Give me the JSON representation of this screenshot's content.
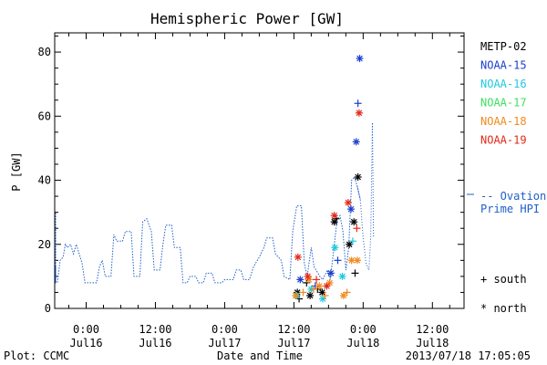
{
  "chart_data": {
    "type": "scatter",
    "title": "Hemispheric Power [GW]",
    "ylabel": "P [GW]",
    "xlabel": "Date and Time",
    "ylim": [
      0,
      86
    ],
    "yticks": [
      0,
      20,
      40,
      60,
      80
    ],
    "x_axis_unit": "hours from 2013-07-15 12:00 UT",
    "xlim": [
      0,
      61.8
    ],
    "xticks": [
      {
        "x": 12,
        "time": "0:00",
        "date": "Jul16"
      },
      {
        "x": 24,
        "time": "12:00",
        "date": "Jul16"
      },
      {
        "x": 36,
        "time": "0:00",
        "date": "Jul17"
      },
      {
        "x": 48,
        "time": "12:00",
        "date": "Jul17"
      },
      {
        "x": 60,
        "time": "0:00",
        "date": "Jul18"
      },
      {
        "x": 72,
        "time": "12:00",
        "date": "Jul18"
      }
    ],
    "grid": false,
    "footer_left": "Plot: CCMC",
    "footer_right": "2013/07/18 17:05:05",
    "legend": {
      "placement": "right",
      "entries": [
        {
          "name": "METP-02",
          "color": "#000000"
        },
        {
          "name": "NOAA-15",
          "color": "#1a3fcc"
        },
        {
          "name": "NOAA-16",
          "color": "#20c8e0"
        },
        {
          "name": "NOAA-17",
          "color": "#3ee060"
        },
        {
          "name": "NOAA-18",
          "color": "#f08a20"
        },
        {
          "name": "NOAA-19",
          "color": "#e02a1a"
        }
      ],
      "ovation_label": "-- Ovation",
      "ovation_label2": "Prime HPI",
      "ovation_color": "#1f5fc8",
      "south_label": "+ south",
      "north_label": "* north"
    },
    "ovation_series": {
      "name": "Ovation Prime HPI",
      "points": [
        [
          -0.8,
          22
        ],
        [
          -0.5,
          10
        ],
        [
          0.4,
          9
        ],
        [
          0.9,
          18
        ],
        [
          1.4,
          26
        ],
        [
          1.8,
          30
        ],
        [
          2.2,
          30
        ],
        [
          2.6,
          15
        ],
        [
          3.2,
          8
        ],
        [
          4.2,
          8
        ],
        [
          4.7,
          13
        ],
        [
          5.3,
          13
        ],
        [
          5.8,
          8
        ],
        [
          7.0,
          8
        ],
        [
          7.5,
          15
        ],
        [
          8.0,
          16
        ],
        [
          8.4,
          20
        ],
        [
          8.8,
          19
        ],
        [
          9.3,
          20
        ],
        [
          9.8,
          17
        ],
        [
          10.3,
          20
        ],
        [
          10.8,
          17
        ],
        [
          11.3,
          14
        ],
        [
          11.8,
          8
        ],
        [
          13.2,
          8
        ],
        [
          13.8,
          8
        ],
        [
          14.3,
          13
        ],
        [
          14.8,
          15
        ],
        [
          15.3,
          10
        ],
        [
          16.3,
          10
        ],
        [
          16.8,
          23
        ],
        [
          17.3,
          21
        ],
        [
          18.3,
          21
        ],
        [
          18.8,
          24
        ],
        [
          19.8,
          24
        ],
        [
          20.3,
          10
        ],
        [
          21.3,
          10
        ],
        [
          21.8,
          27
        ],
        [
          22.5,
          28
        ],
        [
          23.3,
          24
        ],
        [
          23.8,
          12
        ],
        [
          24.8,
          12
        ],
        [
          25.3,
          20
        ],
        [
          25.8,
          26
        ],
        [
          26.8,
          26
        ],
        [
          27.3,
          19
        ],
        [
          28.3,
          19
        ],
        [
          28.8,
          8
        ],
        [
          29.5,
          8
        ],
        [
          30.0,
          10
        ],
        [
          31.0,
          10
        ],
        [
          31.5,
          8
        ],
        [
          32.3,
          8
        ],
        [
          32.8,
          11
        ],
        [
          33.8,
          11
        ],
        [
          34.3,
          8
        ],
        [
          35.5,
          8
        ],
        [
          36.0,
          9
        ],
        [
          37.5,
          9
        ],
        [
          38.0,
          12
        ],
        [
          38.8,
          12
        ],
        [
          39.3,
          9
        ],
        [
          40.3,
          9
        ],
        [
          41.0,
          13
        ],
        [
          42.0,
          16
        ],
        [
          42.8,
          19
        ],
        [
          43.3,
          22
        ],
        [
          44.3,
          22
        ],
        [
          44.8,
          17
        ],
        [
          45.8,
          15
        ],
        [
          46.3,
          10
        ],
        [
          47.3,
          9
        ],
        [
          47.8,
          24
        ],
        [
          48.5,
          32
        ],
        [
          49.3,
          32
        ],
        [
          49.8,
          14
        ],
        [
          50.3,
          10
        ],
        [
          51.0,
          19
        ],
        [
          51.5,
          13
        ],
        [
          52.5,
          10
        ],
        [
          53.0,
          9
        ],
        [
          53.8,
          12
        ],
        [
          54.3,
          9
        ],
        [
          55.0,
          20
        ],
        [
          55.5,
          28
        ],
        [
          56.0,
          29
        ],
        [
          56.5,
          24
        ],
        [
          57.0,
          12
        ],
        [
          57.5,
          19
        ],
        [
          58.0,
          40
        ],
        [
          58.5,
          41
        ],
        [
          59.0,
          38
        ],
        [
          59.5,
          34
        ],
        [
          60.0,
          22
        ],
        [
          60.5,
          14
        ],
        [
          61.0,
          12
        ],
        [
          61.3,
          22
        ],
        [
          61.6,
          58
        ],
        [
          61.8,
          22
        ]
      ],
      "dotted_from_x": 59.5
    },
    "satellite_points": [
      {
        "sat": "METP-02",
        "hemi": "north",
        "x": 48.6,
        "y": 5
      },
      {
        "sat": "METP-02",
        "hemi": "south",
        "x": 48.9,
        "y": 3
      },
      {
        "sat": "METP-02",
        "hemi": "south",
        "x": 50.2,
        "y": 8
      },
      {
        "sat": "METP-02",
        "hemi": "north",
        "x": 50.8,
        "y": 4
      },
      {
        "sat": "METP-02",
        "hemi": "south",
        "x": 52.1,
        "y": 6
      },
      {
        "sat": "METP-02",
        "hemi": "north",
        "x": 52.9,
        "y": 5
      },
      {
        "sat": "METP-02",
        "hemi": "north",
        "x": 55.0,
        "y": 27
      },
      {
        "sat": "METP-02",
        "hemi": "south",
        "x": 55.3,
        "y": 28
      },
      {
        "sat": "METP-02",
        "hemi": "north",
        "x": 57.6,
        "y": 20
      },
      {
        "sat": "METP-02",
        "hemi": "north",
        "x": 58.4,
        "y": 27
      },
      {
        "sat": "METP-02",
        "hemi": "south",
        "x": 58.6,
        "y": 11
      },
      {
        "sat": "METP-02",
        "hemi": "north",
        "x": 59.1,
        "y": 41
      },
      {
        "sat": "NOAA-15",
        "hemi": "north",
        "x": 49.1,
        "y": 9
      },
      {
        "sat": "NOAA-15",
        "hemi": "south",
        "x": 51.7,
        "y": 7
      },
      {
        "sat": "NOAA-15",
        "hemi": "north",
        "x": 54.4,
        "y": 11
      },
      {
        "sat": "NOAA-15",
        "hemi": "south",
        "x": 55.6,
        "y": 15
      },
      {
        "sat": "NOAA-15",
        "hemi": "north",
        "x": 57.9,
        "y": 31
      },
      {
        "sat": "NOAA-15",
        "hemi": "north",
        "x": 58.8,
        "y": 52
      },
      {
        "sat": "NOAA-15",
        "hemi": "south",
        "x": 59.1,
        "y": 64
      },
      {
        "sat": "NOAA-15",
        "hemi": "north",
        "x": 59.4,
        "y": 78
      },
      {
        "sat": "NOAA-16",
        "hemi": "north",
        "x": 48.5,
        "y": 4
      },
      {
        "sat": "NOAA-16",
        "hemi": "north",
        "x": 51.0,
        "y": 6
      },
      {
        "sat": "NOAA-16",
        "hemi": "north",
        "x": 53.0,
        "y": 3
      },
      {
        "sat": "NOAA-16",
        "hemi": "north",
        "x": 55.1,
        "y": 19
      },
      {
        "sat": "NOAA-16",
        "hemi": "north",
        "x": 56.4,
        "y": 10
      },
      {
        "sat": "NOAA-16",
        "hemi": "south",
        "x": 58.2,
        "y": 21
      },
      {
        "sat": "NOAA-18",
        "hemi": "north",
        "x": 48.3,
        "y": 4
      },
      {
        "sat": "NOAA-18",
        "hemi": "south",
        "x": 49.6,
        "y": 5
      },
      {
        "sat": "NOAA-18",
        "hemi": "north",
        "x": 50.6,
        "y": 9
      },
      {
        "sat": "NOAA-18",
        "hemi": "south",
        "x": 51.4,
        "y": 6
      },
      {
        "sat": "NOAA-18",
        "hemi": "north",
        "x": 52.4,
        "y": 7
      },
      {
        "sat": "NOAA-18",
        "hemi": "south",
        "x": 53.4,
        "y": 4
      },
      {
        "sat": "NOAA-18",
        "hemi": "north",
        "x": 54.2,
        "y": 8
      },
      {
        "sat": "NOAA-18",
        "hemi": "north",
        "x": 56.6,
        "y": 4
      },
      {
        "sat": "NOAA-18",
        "hemi": "south",
        "x": 57.2,
        "y": 5
      },
      {
        "sat": "NOAA-18",
        "hemi": "north",
        "x": 58.0,
        "y": 15
      },
      {
        "sat": "NOAA-18",
        "hemi": "north",
        "x": 59.0,
        "y": 15
      },
      {
        "sat": "NOAA-19",
        "hemi": "north",
        "x": 48.7,
        "y": 16
      },
      {
        "sat": "NOAA-19",
        "hemi": "north",
        "x": 50.4,
        "y": 10
      },
      {
        "sat": "NOAA-19",
        "hemi": "south",
        "x": 51.9,
        "y": 9
      },
      {
        "sat": "NOAA-19",
        "hemi": "north",
        "x": 53.7,
        "y": 7
      },
      {
        "sat": "NOAA-19",
        "hemi": "north",
        "x": 55.0,
        "y": 29
      },
      {
        "sat": "NOAA-19",
        "hemi": "north",
        "x": 57.4,
        "y": 33
      },
      {
        "sat": "NOAA-19",
        "hemi": "south",
        "x": 58.9,
        "y": 25
      },
      {
        "sat": "NOAA-19",
        "hemi": "north",
        "x": 59.3,
        "y": 61
      }
    ]
  }
}
